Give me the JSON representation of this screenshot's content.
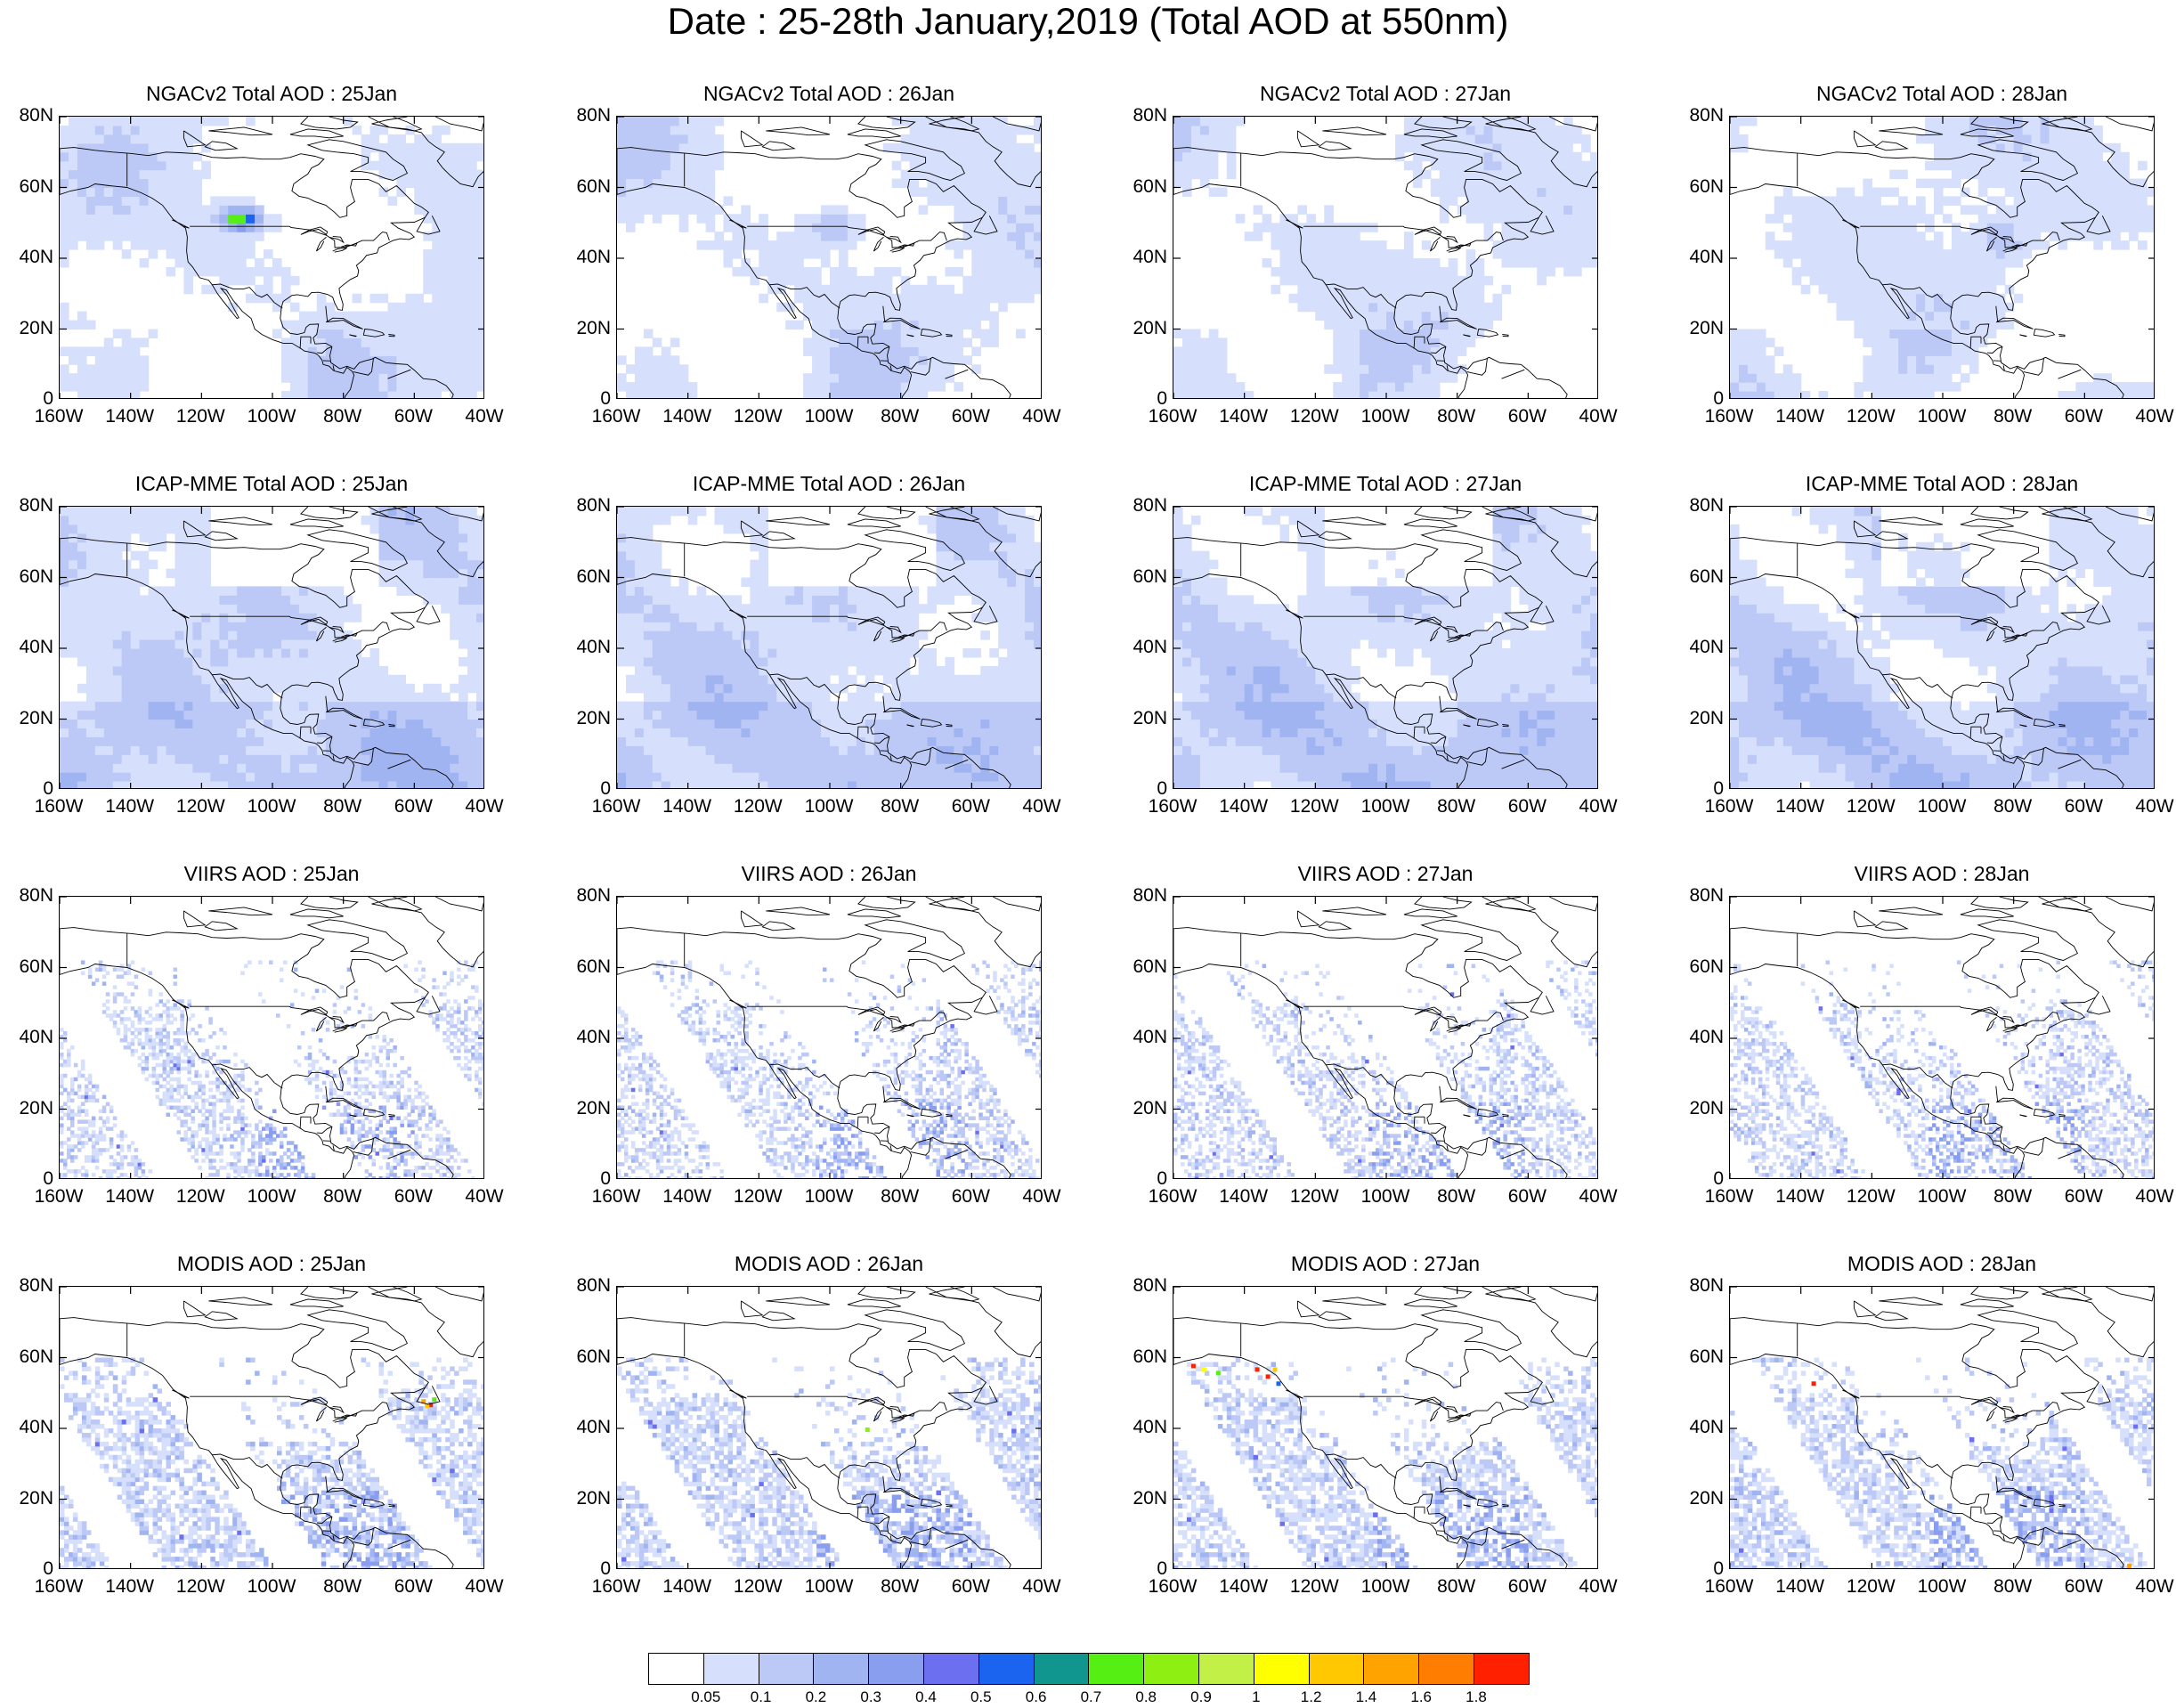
{
  "title": "Date : 25-28th January,2019 (Total AOD at 550nm)",
  "rows": [
    {
      "key": "ngac",
      "panels": [
        "NGACv2 Total AOD : 25Jan",
        "NGACv2 Total AOD : 26Jan",
        "NGACv2 Total AOD : 27Jan",
        "NGACv2 Total AOD : 28Jan"
      ]
    },
    {
      "key": "icap",
      "panels": [
        "ICAP-MME Total AOD : 25Jan",
        "ICAP-MME Total AOD : 26Jan",
        "ICAP-MME Total AOD : 27Jan",
        "ICAP-MME Total AOD : 28Jan"
      ]
    },
    {
      "key": "viirs",
      "panels": [
        "VIIRS AOD : 25Jan",
        "VIIRS AOD : 26Jan",
        "VIIRS AOD : 27Jan",
        "VIIRS AOD : 28Jan"
      ]
    },
    {
      "key": "modis",
      "panels": [
        "MODIS AOD : 25Jan",
        "MODIS AOD : 26Jan",
        "MODIS AOD : 27Jan",
        "MODIS AOD : 28Jan"
      ]
    }
  ],
  "lat_ticks": [
    "80N",
    "60N",
    "40N",
    "20N",
    "0"
  ],
  "lon_ticks": [
    "160W",
    "140W",
    "120W",
    "100W",
    "80W",
    "60W",
    "40W"
  ],
  "colorbar": {
    "colors": [
      "#ffffff",
      "#d6dffb",
      "#bcc9f6",
      "#a1b4f2",
      "#8a9ef0",
      "#6b6ff0",
      "#1a64f0",
      "#10968e",
      "#55ef14",
      "#8def12",
      "#c3f046",
      "#ffff00",
      "#ffc800",
      "#ffa300",
      "#ff7d00",
      "#ff2000"
    ],
    "labels": [
      "0.05",
      "0.1",
      "0.2",
      "0.3",
      "0.4",
      "0.5",
      "0.6",
      "0.7",
      "0.8",
      "0.9",
      "1",
      "1.2",
      "1.4",
      "1.6",
      "1.8"
    ]
  }
}
